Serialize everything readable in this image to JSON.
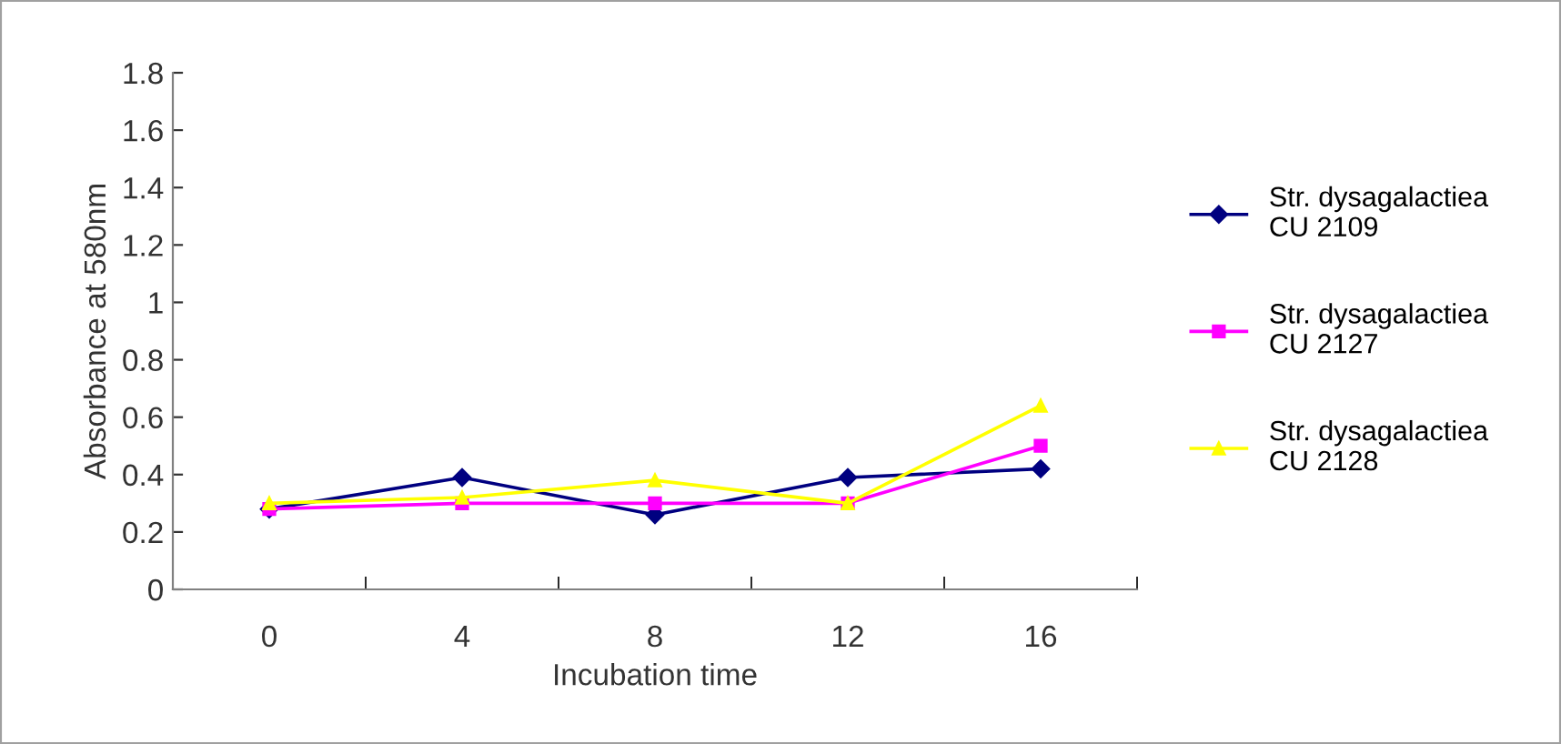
{
  "chart_data": {
    "type": "line",
    "xlabel": "Incubation time",
    "ylabel": "Absorbance at 580nm",
    "categories": [
      "0",
      "4",
      "8",
      "12",
      "16"
    ],
    "ylim": [
      0,
      1.8
    ],
    "yticks": [
      0,
      {
        "value": 0.2,
        "label": "0.2"
      },
      {
        "value": 0.4,
        "label": "0.4"
      },
      {
        "value": 0.6,
        "label": "0.6"
      },
      {
        "value": 0.8,
        "label": "0.8"
      },
      1,
      {
        "value": 1.2,
        "label": "1.2"
      },
      {
        "value": 1.4,
        "label": "1.4"
      },
      {
        "value": 1.6,
        "label": "1.6"
      },
      {
        "value": 1.8,
        "label": "1.8"
      }
    ],
    "grid": false,
    "legend": "right",
    "line_style": "solid",
    "series": [
      {
        "name": "Str. dysagalactiea\nCU 2109",
        "color": "#000080",
        "marker": "diamond",
        "values": [
          0.28,
          0.39,
          0.26,
          0.39,
          0.42
        ]
      },
      {
        "name": "Str. dysagalactiea\nCU 2127",
        "color": "#ff00ff",
        "marker": "square",
        "values": [
          0.28,
          0.3,
          0.3,
          0.3,
          0.5
        ]
      },
      {
        "name": "Str. dysagalactiea\nCU 2128",
        "color": "#ffff00",
        "marker": "triangle",
        "values": [
          0.3,
          0.32,
          0.38,
          0.3,
          0.64
        ]
      }
    ]
  }
}
